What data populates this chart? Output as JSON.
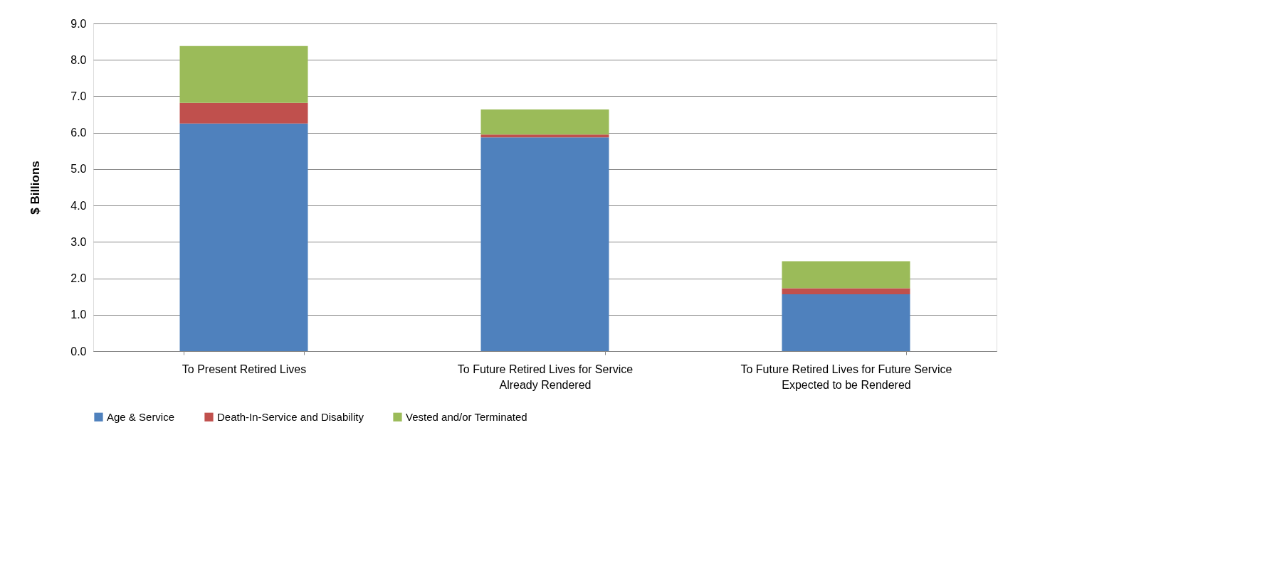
{
  "chart_data": {
    "type": "bar",
    "stacked": true,
    "ylabel": "$ Billions",
    "categories": [
      "To Present Retired Lives",
      "To Future Retired Lives for Service Already Rendered",
      "To Future Retired Lives for Future Service Expected to be Rendered"
    ],
    "series": [
      {
        "name": "Age & Service",
        "color": "#4f81bd",
        "values": [
          6.25,
          5.87,
          1.56
        ]
      },
      {
        "name": "Death-In-Service and Disability",
        "color": "#c0504d",
        "values": [
          0.57,
          0.08,
          0.17
        ]
      },
      {
        "name": "Vested and/or Terminated",
        "color": "#9bbb59",
        "values": [
          1.56,
          0.69,
          0.74
        ]
      }
    ],
    "ylim": [
      0,
      9
    ],
    "yticks": [
      {
        "value": 0,
        "label": "0.0"
      },
      {
        "value": 1,
        "label": "1.0"
      },
      {
        "value": 2,
        "label": "2.0"
      },
      {
        "value": 3,
        "label": "3.0"
      },
      {
        "value": 4,
        "label": "4.0"
      },
      {
        "value": 5,
        "label": "5.0"
      },
      {
        "value": 6,
        "label": "6.0"
      },
      {
        "value": 7,
        "label": "7.0"
      },
      {
        "value": 8,
        "label": "8.0"
      },
      {
        "value": 9,
        "label": "9.0"
      }
    ],
    "grid": "y",
    "legend": "bottom"
  }
}
